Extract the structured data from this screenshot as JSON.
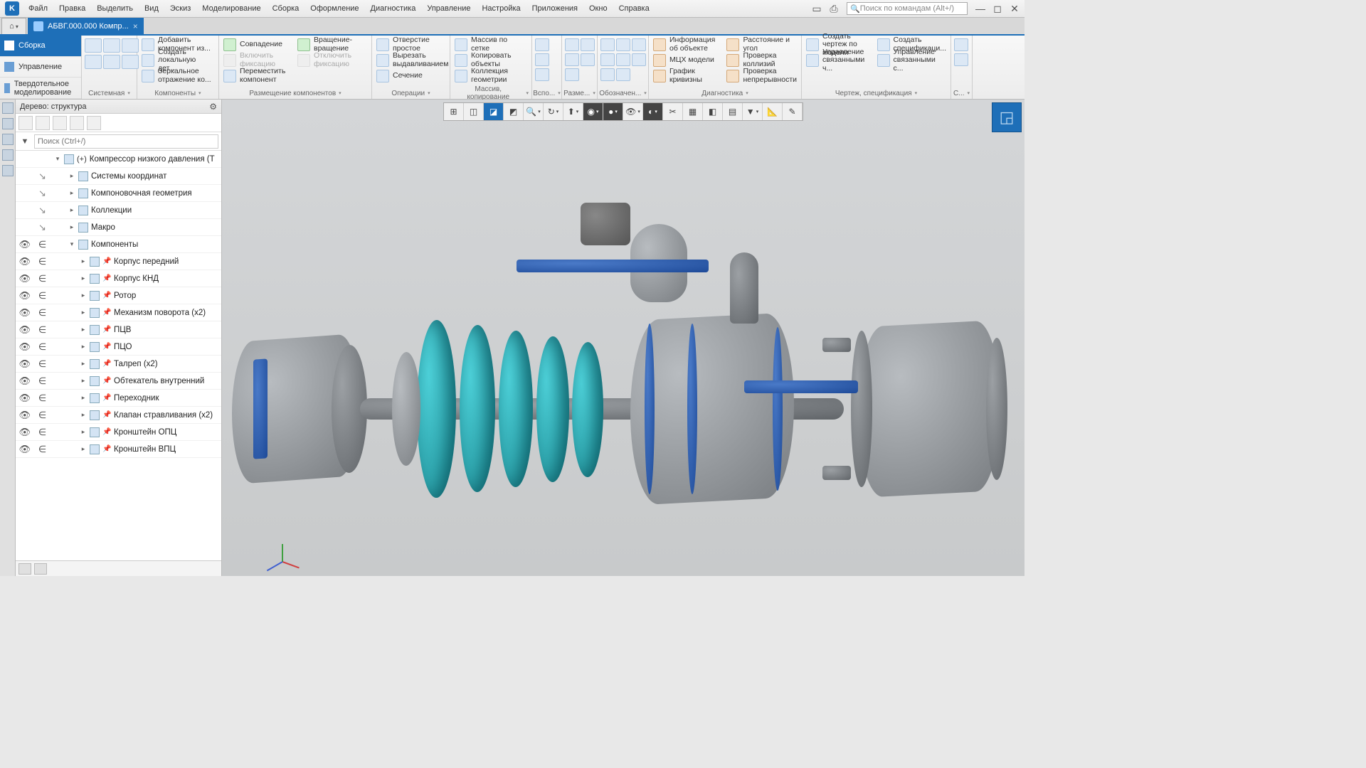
{
  "menu": {
    "items": [
      "Файл",
      "Правка",
      "Выделить",
      "Вид",
      "Эскиз",
      "Моделирование",
      "Сборка",
      "Оформление",
      "Диагностика",
      "Управление",
      "Настройка",
      "Приложения",
      "Окно",
      "Справка"
    ],
    "search_placeholder": "Поиск по командам (Alt+/)"
  },
  "tabs": {
    "doc_title": "АБВГ.000.000 Компр...",
    "home_icon": "⌂"
  },
  "ribbon_side": {
    "items": [
      "Сборка",
      "Управление",
      "Твердотельное моделирование"
    ]
  },
  "ribbon_groups": {
    "g1": {
      "title": "Системная"
    },
    "g2": {
      "title": "Компоненты",
      "cmds": [
        "Добавить компонент из...",
        "Создать локальную дет...",
        "Зеркальное отражение ко..."
      ]
    },
    "g3": {
      "title": "Размещение компонентов",
      "cmds": [
        "Совпадение",
        "Включить фиксацию",
        "Переместить компонент",
        "Вращение-вращение",
        "Отключить фиксацию"
      ]
    },
    "g4": {
      "title": "Операции",
      "cmds": [
        "Отверстие простое",
        "Вырезать выдавливанием",
        "Сечение"
      ]
    },
    "g5": {
      "title": "Массив, копирование",
      "cmds": [
        "Массив по сетке",
        "Копировать объекты",
        "Коллекция геометрии"
      ]
    },
    "g6": {
      "title": "Вспо..."
    },
    "g7": {
      "title": "Разме..."
    },
    "g8": {
      "title": "Обозначен..."
    },
    "g9": {
      "title": "Диагностика",
      "cmds": [
        "Информация об объекте",
        "МЦХ модели",
        "График кривизны",
        "Расстояние и угол",
        "Проверка коллизий",
        "Проверка непрерывности"
      ]
    },
    "g10": {
      "title": "Чертеж, спецификация",
      "cmds": [
        "Создать чертеж по модели",
        "Управление связанными ч...",
        "Создать спецификаци...",
        "Управление связанными с..."
      ]
    },
    "g11": {
      "title": "С..."
    }
  },
  "tree": {
    "header": "Дерево: структура",
    "search_placeholder": "Поиск (Ctrl+/)",
    "root": "Компрессор низкого давления (Т",
    "rows": [
      {
        "label": "Системы координат",
        "indent": 1,
        "vis": false,
        "pin": false,
        "icon": "axes"
      },
      {
        "label": "Компоновочная геометрия",
        "indent": 1,
        "vis": false,
        "pin": false,
        "icon": "axes"
      },
      {
        "label": "Коллекции",
        "indent": 1,
        "vis": false,
        "pin": false,
        "icon": "folder"
      },
      {
        "label": "Макро",
        "indent": 1,
        "vis": false,
        "pin": false,
        "icon": "folder"
      },
      {
        "label": "Компоненты",
        "indent": 1,
        "vis": true,
        "pin": false,
        "expanded": true,
        "icon": "comp"
      },
      {
        "label": "Корпус передний",
        "indent": 2,
        "vis": true,
        "pin": true,
        "icon": "part"
      },
      {
        "label": "Корпус КНД",
        "indent": 2,
        "vis": true,
        "pin": true,
        "icon": "part"
      },
      {
        "label": "Ротор",
        "indent": 2,
        "vis": true,
        "pin": true,
        "icon": "part"
      },
      {
        "label": "Механизм поворота (x2)",
        "indent": 2,
        "vis": true,
        "pin": true,
        "icon": "part"
      },
      {
        "label": "ПЦВ",
        "indent": 2,
        "vis": true,
        "pin": true,
        "icon": "part"
      },
      {
        "label": "ПЦО",
        "indent": 2,
        "vis": true,
        "pin": true,
        "icon": "part"
      },
      {
        "label": "Талреп (x2)",
        "indent": 2,
        "vis": true,
        "pin": true,
        "icon": "part"
      },
      {
        "label": "Обтекатель внутренний",
        "indent": 2,
        "vis": true,
        "pin": true,
        "icon": "part"
      },
      {
        "label": "Переходник",
        "indent": 2,
        "vis": true,
        "pin": true,
        "icon": "part"
      },
      {
        "label": "Клапан стравливания (x2)",
        "indent": 2,
        "vis": true,
        "pin": true,
        "icon": "part"
      },
      {
        "label": "Кронштейн ОПЦ",
        "indent": 2,
        "vis": true,
        "pin": true,
        "icon": "part"
      },
      {
        "label": "Кронштейн ВПЦ",
        "indent": 2,
        "vis": true,
        "pin": true,
        "icon": "part"
      }
    ]
  },
  "viewport": {
    "colors": {
      "metal_light": "#b0b4b8",
      "metal_dark": "#707478",
      "teal_light": "#3cc8d0",
      "teal_dark": "#188890",
      "blue_accent": "#2858b0",
      "background": "#ced0d2"
    }
  }
}
